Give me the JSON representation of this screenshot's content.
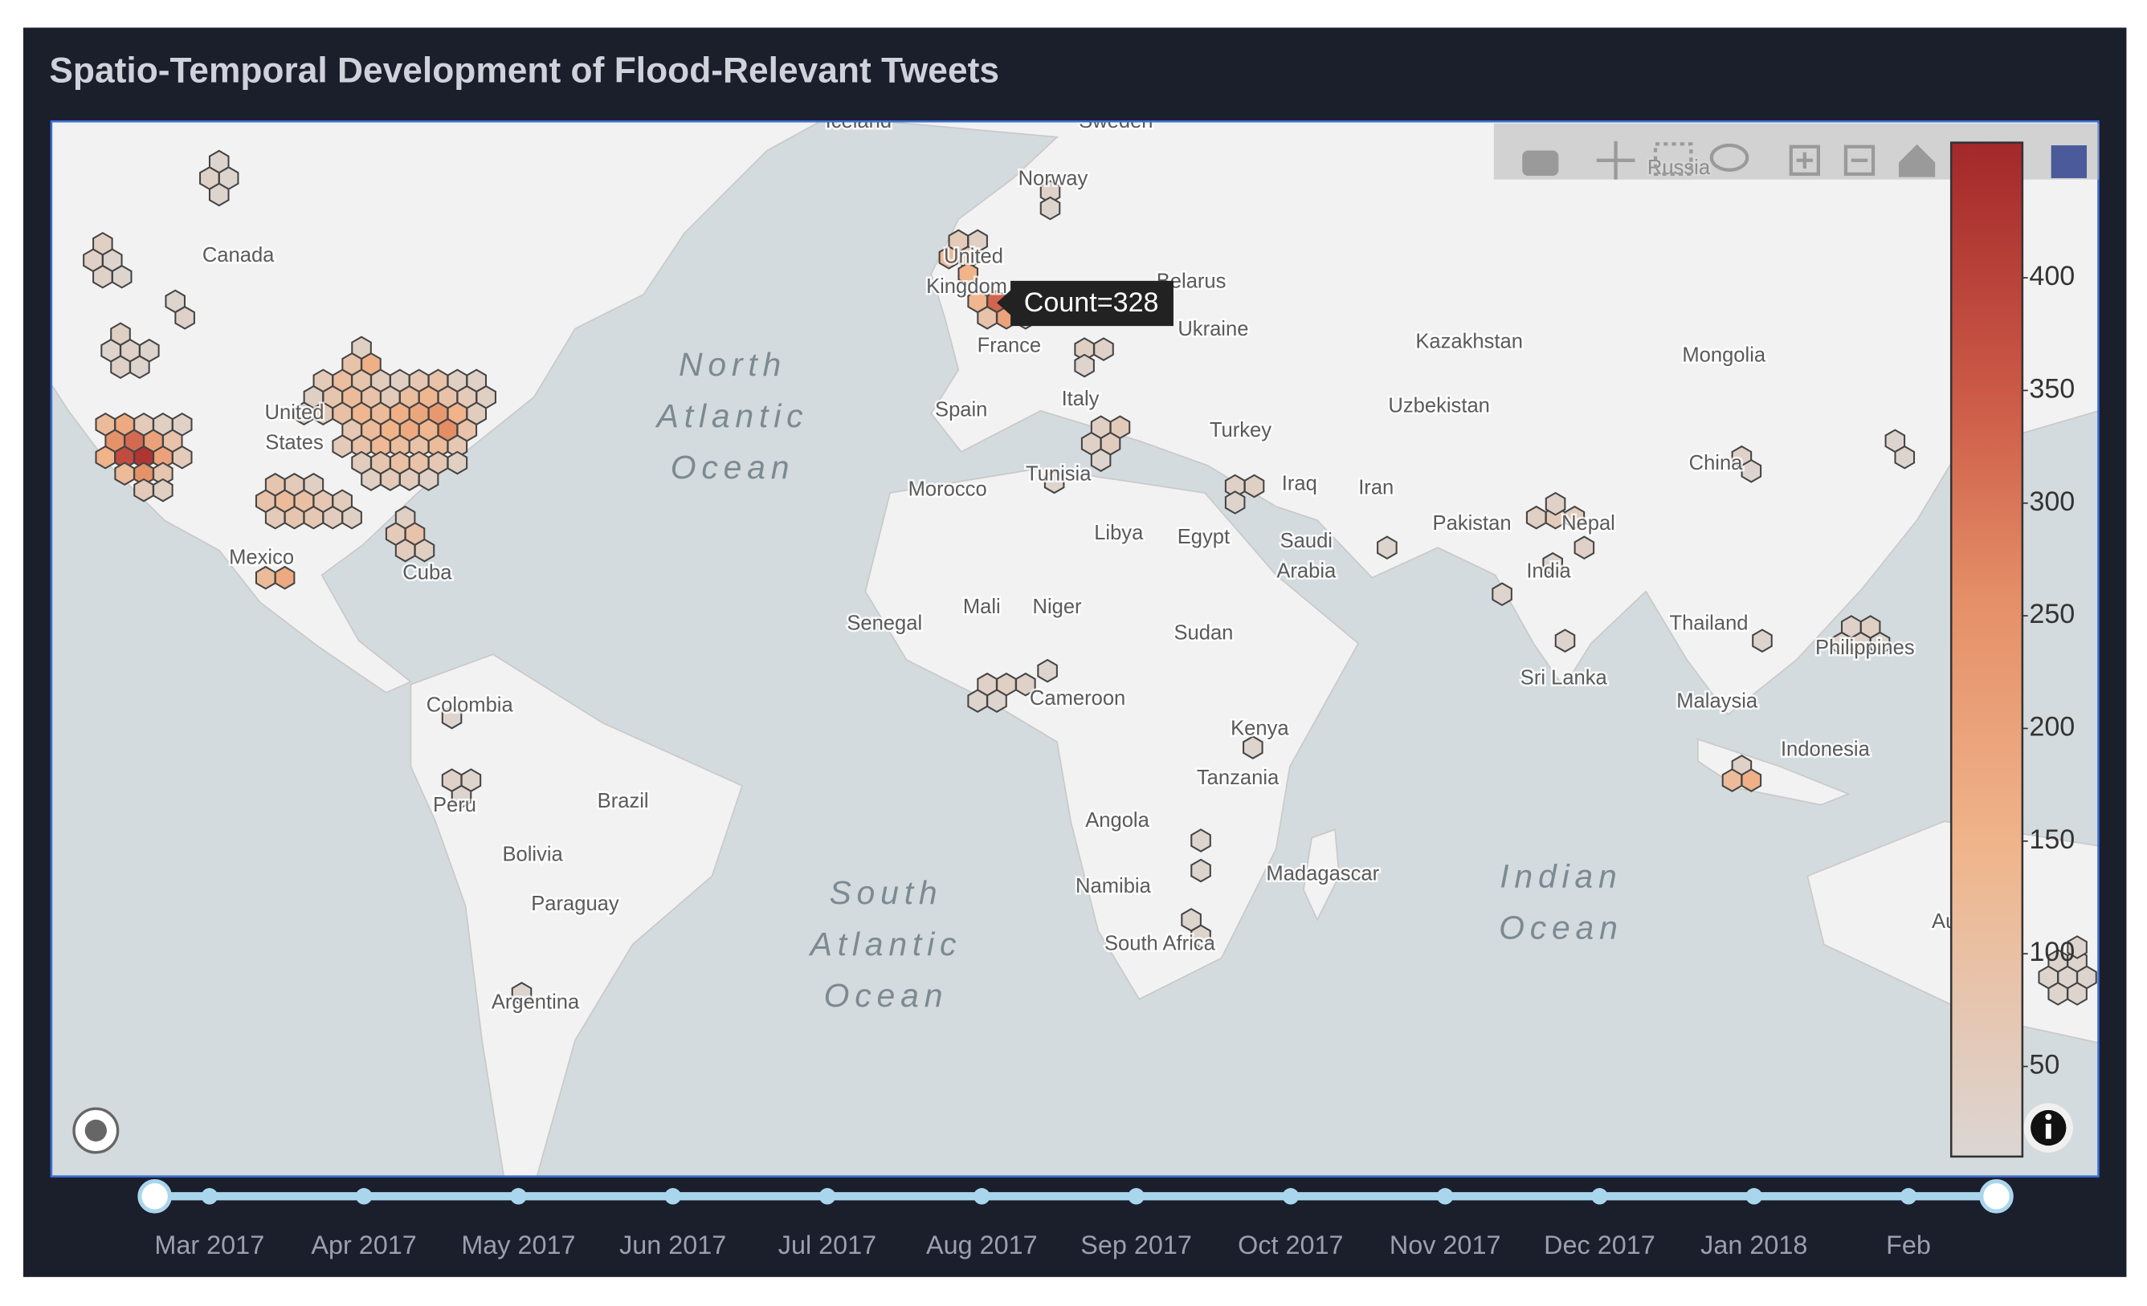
{
  "title": "Spatio-Temporal Development of Flood-Relevant Tweets",
  "map_labels": [
    "Iceland",
    "Sweden",
    "Norway",
    "Canada",
    "United",
    "Kingdom",
    "Belarus",
    "Ukraine",
    "France",
    "Kazakhstan",
    "Mongolia",
    "Russia",
    "Spain",
    "Italy",
    "Uzbekistan",
    "United",
    "States",
    "Turkey",
    "Tunisia",
    "Morocco",
    "Iraq",
    "Iran",
    "China",
    "Pakistan",
    "Nepal",
    "Libya",
    "Egypt",
    "Saudi",
    "Arabia",
    "India",
    "Mexico",
    "Cuba",
    "Mali",
    "Niger",
    "Senegal",
    "Sudan",
    "Thailand",
    "Philippines",
    "Sri Lanka",
    "Cameroon",
    "Malaysia",
    "Colombia",
    "Kenya",
    "Indonesia",
    "Tanzania",
    "Peru",
    "Brazil",
    "Angola",
    "Bolivia",
    "Madagascar",
    "Namibia",
    "Paraguay",
    "South Africa",
    "Argentina",
    "Australia"
  ],
  "ocean_labels": [
    [
      "North",
      "Atlantic",
      "Ocean"
    ],
    [
      "South",
      "Atlantic",
      "Ocean"
    ],
    [
      "Indian",
      "Ocean"
    ]
  ],
  "tooltip": "Count=328",
  "hexbins": {
    "clim": [
      10,
      460
    ],
    "colorscale": [
      [
        0,
        "#dcd6d3"
      ],
      [
        0.3,
        "#f0b58c"
      ],
      [
        0.55,
        "#e58f67"
      ],
      [
        0.75,
        "#cc5a47"
      ],
      [
        1,
        "#a3282a"
      ]
    ],
    "counts": [
      120,
      180,
      60,
      40,
      30,
      250,
      320,
      200,
      90,
      150,
      380,
      430,
      200,
      60,
      120,
      250,
      80,
      60,
      40,
      40,
      90,
      160,
      60,
      110,
      80,
      50,
      40,
      70,
      90,
      40,
      30,
      40,
      80,
      120,
      90,
      60,
      110,
      140,
      90,
      60,
      40,
      30,
      60,
      100,
      140,
      120,
      160,
      190,
      230,
      150,
      50,
      70,
      120,
      150,
      180,
      140,
      260,
      90,
      60,
      90,
      130,
      110,
      90,
      120,
      70,
      50,
      80,
      100,
      90,
      70,
      40,
      40,
      60,
      50,
      30,
      80,
      60,
      40,
      90,
      120,
      100,
      70,
      50,
      60,
      80,
      70,
      50,
      40,
      20,
      30,
      20,
      20,
      40,
      30,
      20,
      30,
      20,
      20,
      30,
      40,
      20,
      30,
      20,
      30,
      20,
      40,
      60,
      90,
      50,
      40,
      120,
      180,
      60,
      40,
      120,
      80,
      150,
      140,
      328,
      220,
      90,
      200,
      60,
      30,
      20,
      40,
      30,
      20,
      40,
      60,
      30,
      50,
      20,
      30,
      40,
      20,
      20,
      20,
      40,
      60,
      50,
      30,
      30,
      20,
      20,
      20,
      30,
      20,
      20,
      20,
      20,
      30,
      40,
      20,
      30,
      20,
      30,
      120,
      160,
      30,
      40,
      30,
      20,
      20,
      20,
      20,
      20,
      20,
      20,
      20,
      20,
      30,
      20,
      20,
      20,
      20,
      20,
      20,
      20,
      20,
      20,
      20,
      20
    ]
  },
  "colorbar_ticks": [
    50,
    100,
    150,
    200,
    250,
    300,
    350,
    400
  ],
  "slider_labels": [
    "Mar 2017",
    "Apr 2017",
    "May 2017",
    "Jun 2017",
    "Jul 2017",
    "Aug 2017",
    "Sep 2017",
    "Oct 2017",
    "Nov 2017",
    "Dec 2017",
    "Jan 2018",
    "Feb"
  ]
}
